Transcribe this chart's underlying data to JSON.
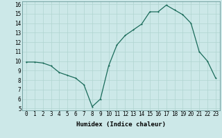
{
  "x": [
    0,
    1,
    2,
    3,
    4,
    5,
    6,
    7,
    8,
    9,
    10,
    11,
    12,
    13,
    14,
    15,
    16,
    17,
    18,
    19,
    20,
    21,
    22,
    23
  ],
  "y": [
    9.9,
    9.9,
    9.8,
    9.5,
    8.8,
    8.5,
    8.2,
    7.5,
    5.2,
    6.0,
    9.5,
    11.7,
    12.7,
    13.3,
    13.9,
    15.2,
    15.2,
    15.9,
    15.4,
    14.9,
    14.0,
    11.0,
    10.0,
    8.2
  ],
  "xlabel": "Humidex (Indice chaleur)",
  "xlim": [
    -0.5,
    23.5
  ],
  "ylim": [
    4.8,
    16.3
  ],
  "yticks": [
    5,
    6,
    7,
    8,
    9,
    10,
    11,
    12,
    13,
    14,
    15,
    16
  ],
  "xticks": [
    0,
    1,
    2,
    3,
    4,
    5,
    6,
    7,
    8,
    9,
    10,
    11,
    12,
    13,
    14,
    15,
    16,
    17,
    18,
    19,
    20,
    21,
    22,
    23
  ],
  "line_color": "#1a6b5a",
  "marker_color": "#1a6b5a",
  "bg_color": "#cce8e8",
  "grid_color": "#b0d4d0",
  "tick_fontsize": 5.5,
  "xlabel_fontsize": 6.5,
  "linewidth": 0.9,
  "markersize": 2.0
}
